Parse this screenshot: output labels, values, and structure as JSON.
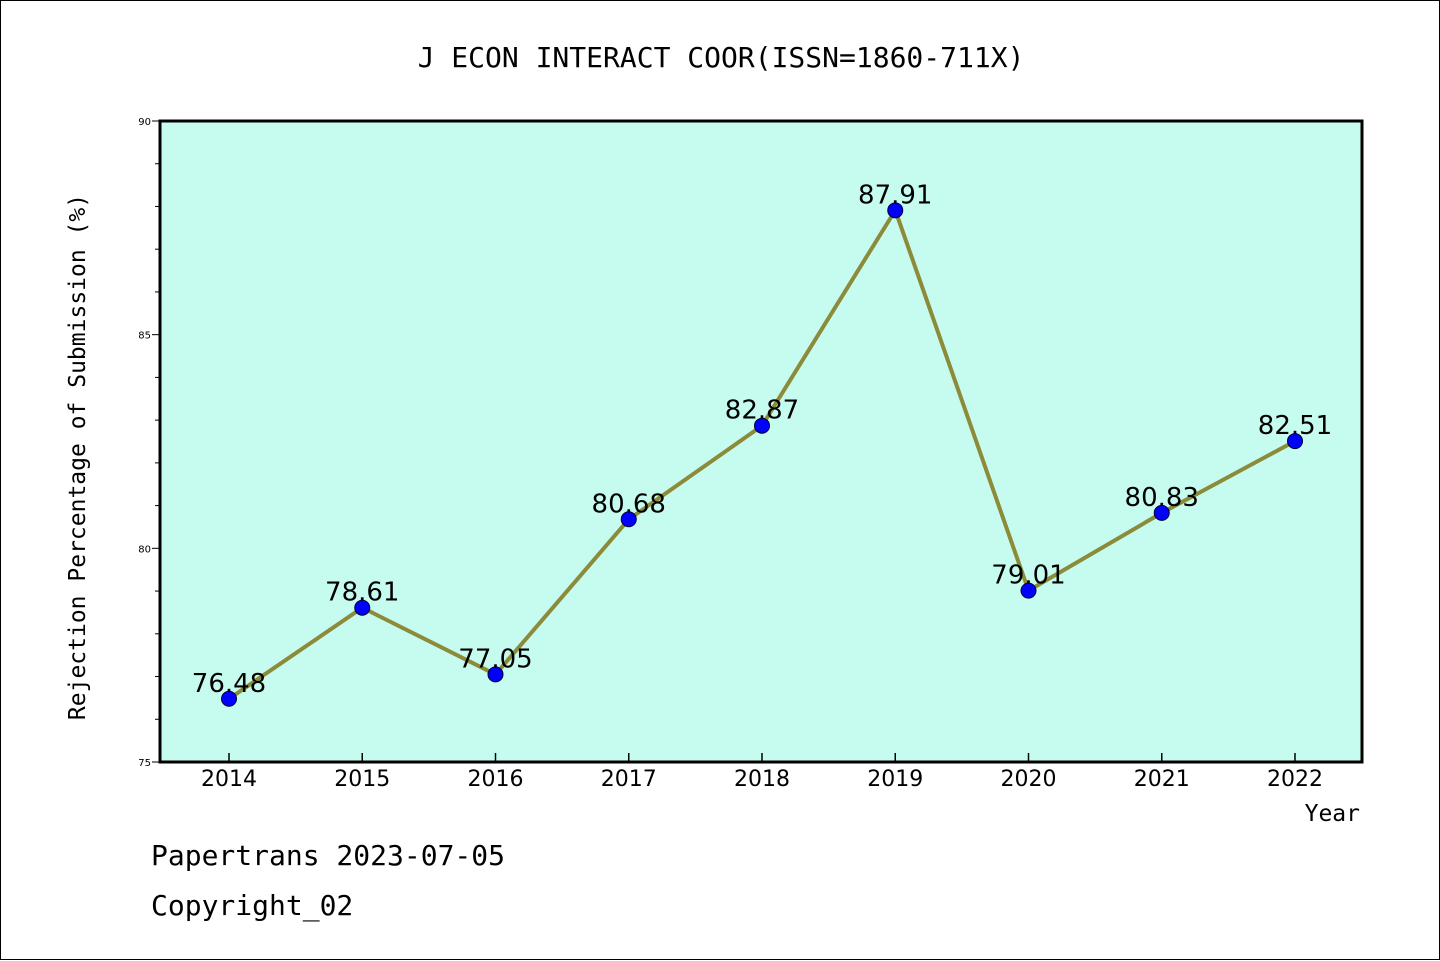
{
  "chart_data": {
    "type": "line",
    "title": "J ECON INTERACT COOR(ISSN=1860-711X)",
    "xlabel": "Year",
    "ylabel": "Rejection Percentage of Submission (%)",
    "categories": [
      "2014",
      "2015",
      "2016",
      "2017",
      "2018",
      "2019",
      "2020",
      "2021",
      "2022"
    ],
    "values": [
      76.48,
      78.61,
      77.05,
      80.68,
      82.87,
      87.91,
      79.01,
      80.83,
      82.51
    ],
    "value_labels": [
      "76.48",
      "78.61",
      "77.05",
      "80.68",
      "82.87",
      "87.91",
      "79.01",
      "80.83",
      "82.51"
    ],
    "ylim": [
      75,
      90
    ],
    "yticks": [
      "75",
      "80",
      "85",
      "90"
    ],
    "grid": false,
    "colors": {
      "plot_background": "#c6fcef",
      "line": "#8b8b3a",
      "marker": "#0000ff"
    }
  },
  "footer": {
    "line1": "Papertrans 2023-07-05",
    "line2": "Copyright_02"
  }
}
